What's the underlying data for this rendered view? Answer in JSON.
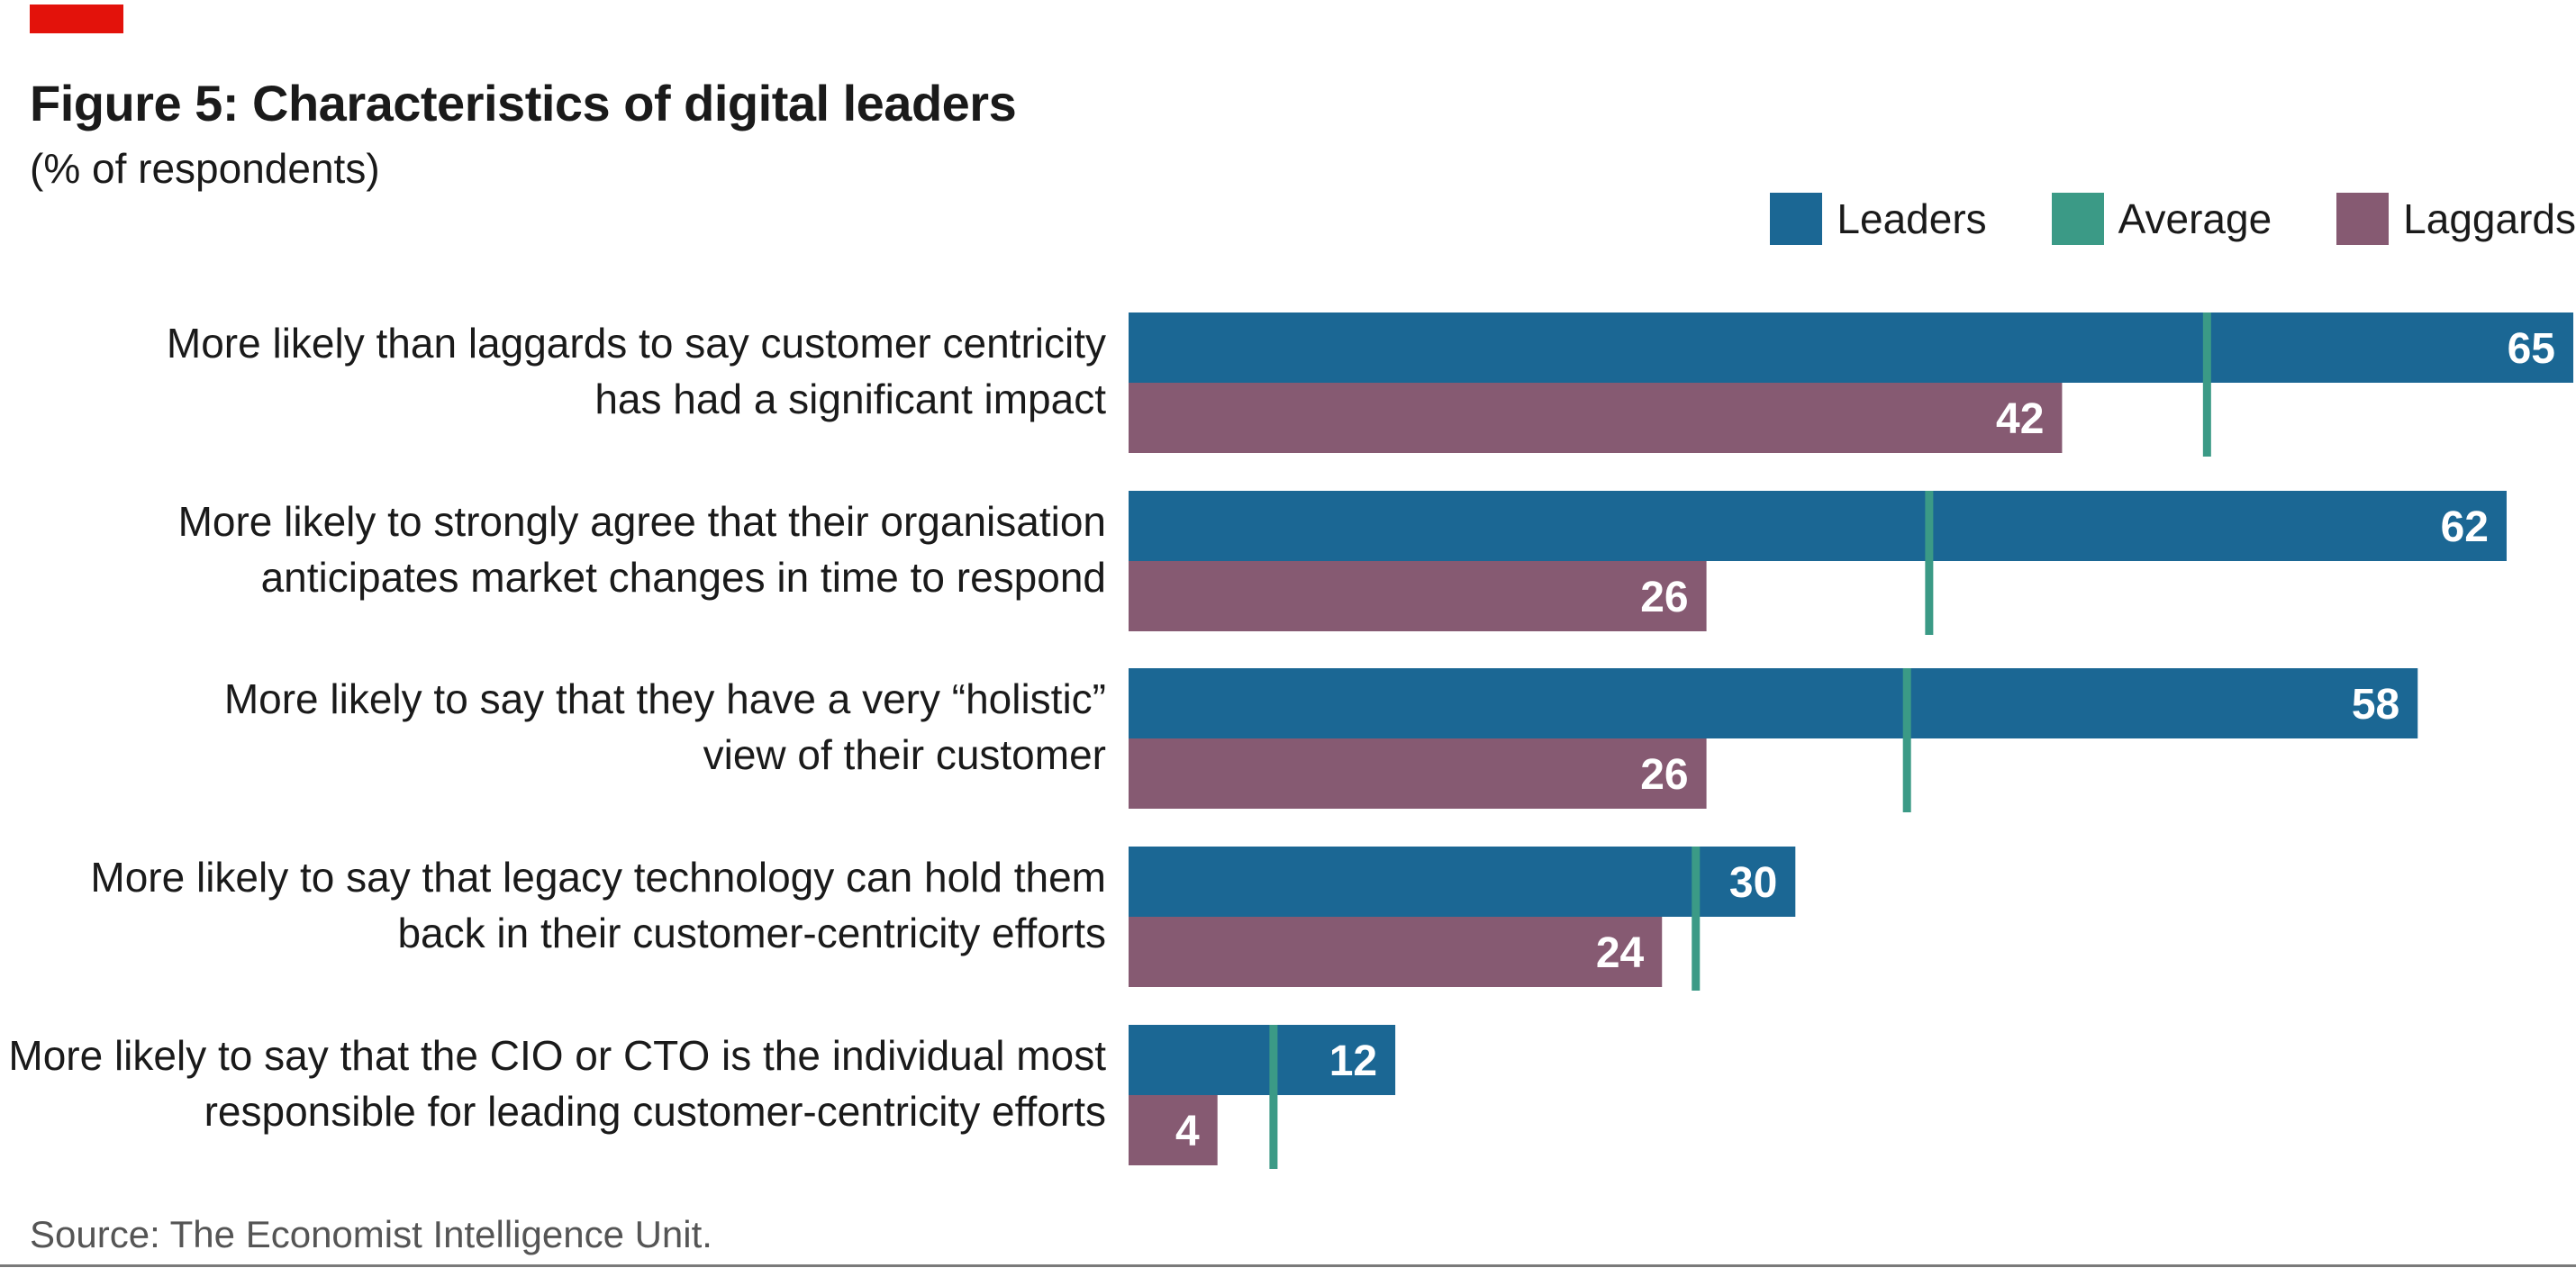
{
  "figure": {
    "title": "Figure 5: Characteristics of digital leaders",
    "subtitle": "(% of respondents)",
    "source": "Source: The Economist Intelligence Unit."
  },
  "legend": [
    {
      "label": "Leaders",
      "color": "#1b6794"
    },
    {
      "label": "Average",
      "color": "#3b9a86"
    },
    {
      "label": "Laggards",
      "color": "#865a72"
    }
  ],
  "chart_data": {
    "type": "bar",
    "orientation": "horizontal",
    "title": "Figure 5: Characteristics of digital leaders",
    "subtitle": "(% of respondents)",
    "xlim": [
      0,
      65
    ],
    "grid": false,
    "legend_position": "top-right",
    "categories": [
      [
        "More likely than laggards to say customer centricity",
        "has had a significant impact"
      ],
      [
        "More likely to strongly agree that their organisation",
        "anticipates market changes in time to respond"
      ],
      [
        "More likely to say that they have a very “holistic”",
        "view of their customer"
      ],
      [
        "More likely to say that legacy technology can hold them",
        "back in their customer-centricity efforts"
      ],
      [
        "More likely to say that the CIO or CTO is the individual most",
        "responsible for leading customer-centricity efforts"
      ]
    ],
    "series": [
      {
        "name": "Leaders",
        "color": "#1b6794",
        "values": [
          65,
          62,
          58,
          30,
          12
        ]
      },
      {
        "name": "Average",
        "color": "#3b9a86",
        "values": [
          48.5,
          36,
          35,
          25.5,
          6.5
        ],
        "mark": "tick"
      },
      {
        "name": "Laggards",
        "color": "#865a72",
        "values": [
          42,
          26,
          26,
          24,
          4
        ]
      }
    ]
  }
}
